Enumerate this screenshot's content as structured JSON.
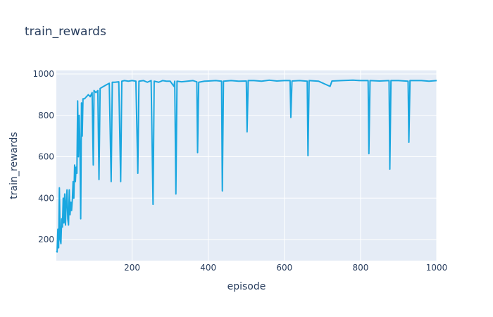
{
  "chart_data": {
    "type": "line",
    "title": "train_rewards",
    "x_label": "episode",
    "y_label": "train_rewards",
    "xlim": [
      1,
      1000
    ],
    "ylim": [
      98,
      1017
    ],
    "xticks": [
      200,
      400,
      600,
      800,
      1000
    ],
    "yticks": [
      200,
      400,
      600,
      800,
      1000
    ],
    "grid": true,
    "series": [
      {
        "name": "train_rewards",
        "color": "#1aa7e0",
        "x": [
          1,
          3,
          5,
          7,
          9,
          11,
          13,
          15,
          17,
          19,
          21,
          23,
          25,
          27,
          29,
          31,
          33,
          35,
          37,
          39,
          41,
          43,
          45,
          47,
          49,
          51,
          53,
          55,
          57,
          59,
          61,
          63,
          65,
          67,
          69,
          71,
          75,
          80,
          85,
          90,
          95,
          98,
          100,
          105,
          110,
          113,
          116,
          125,
          130,
          135,
          140,
          145,
          148,
          155,
          165,
          170,
          173,
          180,
          190,
          200,
          210,
          215,
          218,
          230,
          240,
          250,
          255,
          258,
          270,
          280,
          290,
          300,
          310,
          312,
          315,
          318,
          330,
          345,
          360,
          370,
          372,
          375,
          390,
          400,
          420,
          435,
          437,
          440,
          460,
          480,
          500,
          502,
          505,
          520,
          540,
          560,
          580,
          600,
          615,
          617,
          620,
          640,
          660,
          662,
          665,
          690,
          720,
          725,
          750,
          780,
          800,
          820,
          822,
          825,
          850,
          875,
          877,
          880,
          900,
          925,
          927,
          930,
          960,
          980,
          1000
        ],
        "values": [
          145,
          140,
          250,
          160,
          450,
          200,
          180,
          300,
          260,
          400,
          280,
          420,
          270,
          380,
          440,
          300,
          270,
          440,
          320,
          380,
          340,
          390,
          480,
          400,
          560,
          480,
          550,
          520,
          870,
          600,
          800,
          650,
          300,
          860,
          700,
          880,
          880,
          890,
          900,
          890,
          910,
          560,
          920,
          910,
          920,
          490,
          930,
          940,
          945,
          950,
          955,
          480,
          960,
          960,
          962,
          480,
          965,
          968,
          965,
          968,
          965,
          520,
          965,
          968,
          960,
          968,
          370,
          965,
          960,
          968,
          965,
          965,
          940,
          965,
          420,
          965,
          962,
          965,
          968,
          962,
          620,
          960,
          965,
          966,
          968,
          965,
          435,
          965,
          968,
          965,
          966,
          720,
          968,
          968,
          965,
          970,
          966,
          968,
          968,
          790,
          966,
          968,
          965,
          605,
          968,
          965,
          940,
          966,
          968,
          970,
          968,
          968,
          615,
          968,
          966,
          968,
          540,
          968,
          968,
          965,
          670,
          968,
          968,
          965,
          968
        ]
      }
    ]
  }
}
